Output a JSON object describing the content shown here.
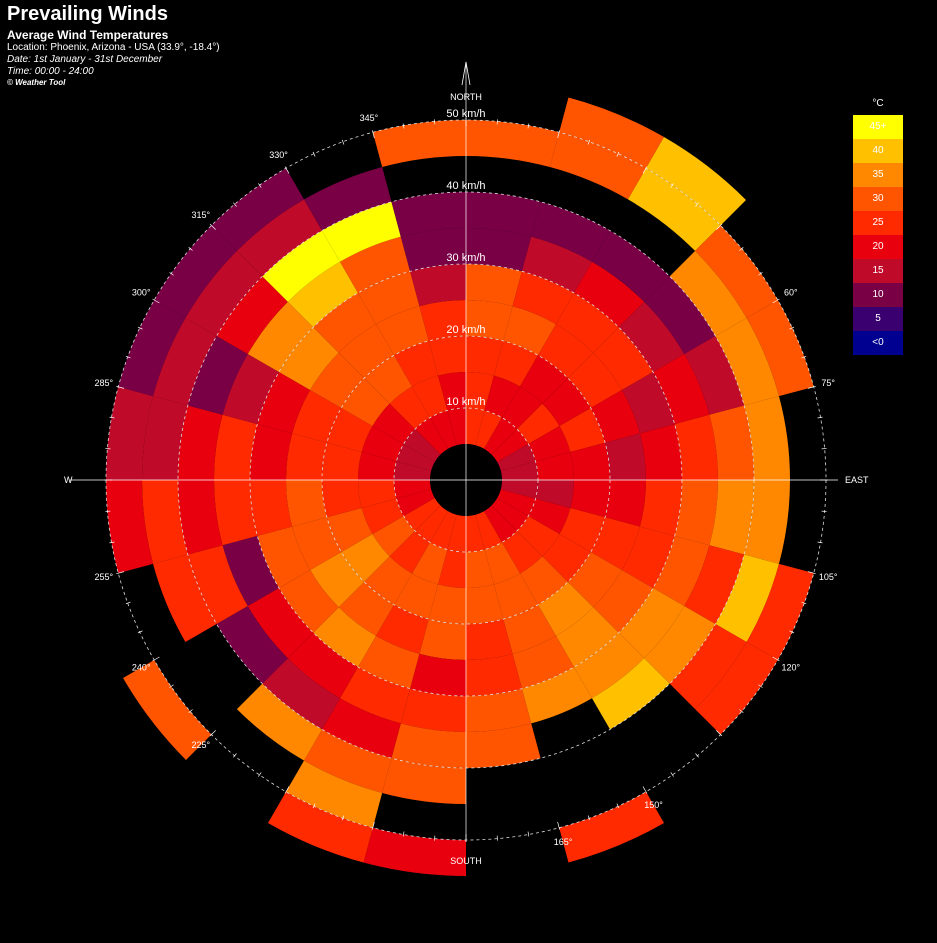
{
  "header": {
    "title": "Prevailing Winds",
    "subtitle": "Average Wind Temperatures",
    "location": "Location: Phoenix, Arizona - USA (33.9°, -18.4°)",
    "date": "Date: 1st January - 31st December",
    "time": "Time: 00:00 - 24:00",
    "credit": "© Weather Tool"
  },
  "legend": {
    "title": "°C",
    "items": [
      {
        "label": "45+",
        "color": "#ffff00"
      },
      {
        "label": "40",
        "color": "#ffc000"
      },
      {
        "label": "35",
        "color": "#ff8800"
      },
      {
        "label": "30",
        "color": "#ff5500"
      },
      {
        "label": "25",
        "color": "#ff2a00"
      },
      {
        "label": "20",
        "color": "#e8000e"
      },
      {
        "label": "15",
        "color": "#c00a2a"
      },
      {
        "label": "10",
        "color": "#7a0046"
      },
      {
        "label": "5",
        "color": "#3a0070"
      },
      {
        "label": "<0",
        "color": "#000090"
      }
    ]
  },
  "chart_data": {
    "type": "polar-heatmap",
    "title": "Prevailing Winds",
    "subtitle": "Average Wind Temperatures",
    "directions": {
      "north": "NORTH",
      "east": "EAST",
      "south": "SOUTH",
      "west": "W"
    },
    "speed_unit": "km/h",
    "speed_labels": [
      "10 km/h",
      "20 km/h",
      "30 km/h",
      "40 km/h",
      "50 km/h"
    ],
    "angle_labels": [
      {
        "deg": 60,
        "label": "60°"
      },
      {
        "deg": 75,
        "label": "75°"
      },
      {
        "deg": 105,
        "label": "105°"
      },
      {
        "deg": 120,
        "label": "120°"
      },
      {
        "deg": 150,
        "label": "150°"
      },
      {
        "deg": 165,
        "label": "165°"
      },
      {
        "deg": 225,
        "label": "225°"
      },
      {
        "deg": 240,
        "label": "240°"
      },
      {
        "deg": 255,
        "label": "255°"
      },
      {
        "deg": 285,
        "label": "285°"
      },
      {
        "deg": 300,
        "label": "300°"
      },
      {
        "deg": 315,
        "label": "315°"
      },
      {
        "deg": 330,
        "label": "330°"
      },
      {
        "deg": 345,
        "label": "345°"
      }
    ],
    "sector_width_deg": 15,
    "speed_bins_kmh": [
      [
        5,
        10
      ],
      [
        10,
        15
      ],
      [
        15,
        20
      ],
      [
        20,
        25
      ],
      [
        25,
        30
      ],
      [
        30,
        35
      ],
      [
        35,
        40
      ],
      [
        40,
        45
      ],
      [
        45,
        50
      ],
      [
        50,
        55
      ]
    ],
    "temperature_grid_celsius": [
      [
        25,
        25,
        25,
        30,
        30,
        10,
        10,
        null,
        30,
        null
      ],
      [
        25,
        20,
        25,
        30,
        25,
        15,
        10,
        null,
        30,
        30
      ],
      [
        20,
        20,
        20,
        25,
        25,
        20,
        10,
        null,
        40,
        40
      ],
      [
        20,
        25,
        20,
        25,
        25,
        15,
        10,
        35,
        30,
        null
      ],
      [
        15,
        20,
        25,
        20,
        15,
        20,
        15,
        35,
        30,
        null
      ],
      [
        15,
        20,
        20,
        15,
        20,
        25,
        30,
        35,
        null,
        null
      ],
      [
        15,
        15,
        20,
        20,
        25,
        30,
        35,
        35,
        null,
        null
      ],
      [
        20,
        20,
        25,
        25,
        25,
        30,
        25,
        40,
        25,
        null
      ],
      [
        20,
        25,
        25,
        30,
        30,
        35,
        35,
        25,
        25,
        null
      ],
      [
        20,
        25,
        30,
        35,
        35,
        35,
        40,
        null,
        null,
        null
      ],
      [
        25,
        30,
        30,
        30,
        30,
        35,
        null,
        null,
        null,
        25
      ],
      [
        25,
        30,
        30,
        25,
        25,
        30,
        30,
        null,
        null,
        null
      ],
      [
        25,
        25,
        30,
        30,
        20,
        25,
        30,
        30,
        null,
        20
      ],
      [
        25,
        30,
        30,
        25,
        30,
        25,
        20,
        30,
        35,
        25
      ],
      [
        25,
        25,
        30,
        30,
        35,
        20,
        15,
        35,
        null,
        null
      ],
      [
        25,
        30,
        35,
        35,
        30,
        20,
        10,
        null,
        null,
        30
      ],
      [
        20,
        25,
        30,
        30,
        30,
        10,
        25,
        25,
        null,
        null
      ],
      [
        20,
        25,
        25,
        30,
        25,
        25,
        20,
        25,
        20,
        null
      ],
      [
        15,
        20,
        25,
        25,
        20,
        25,
        20,
        15,
        15,
        null
      ],
      [
        15,
        20,
        25,
        25,
        20,
        15,
        10,
        15,
        10,
        null
      ],
      [
        15,
        20,
        30,
        30,
        35,
        35,
        20,
        15,
        10,
        null
      ],
      [
        20,
        25,
        30,
        30,
        30,
        40,
        45,
        15,
        10,
        null
      ],
      [
        20,
        25,
        25,
        30,
        30,
        30,
        45,
        10,
        null,
        null
      ],
      [
        20,
        20,
        25,
        25,
        15,
        10,
        10,
        null,
        30,
        null
      ]
    ]
  }
}
